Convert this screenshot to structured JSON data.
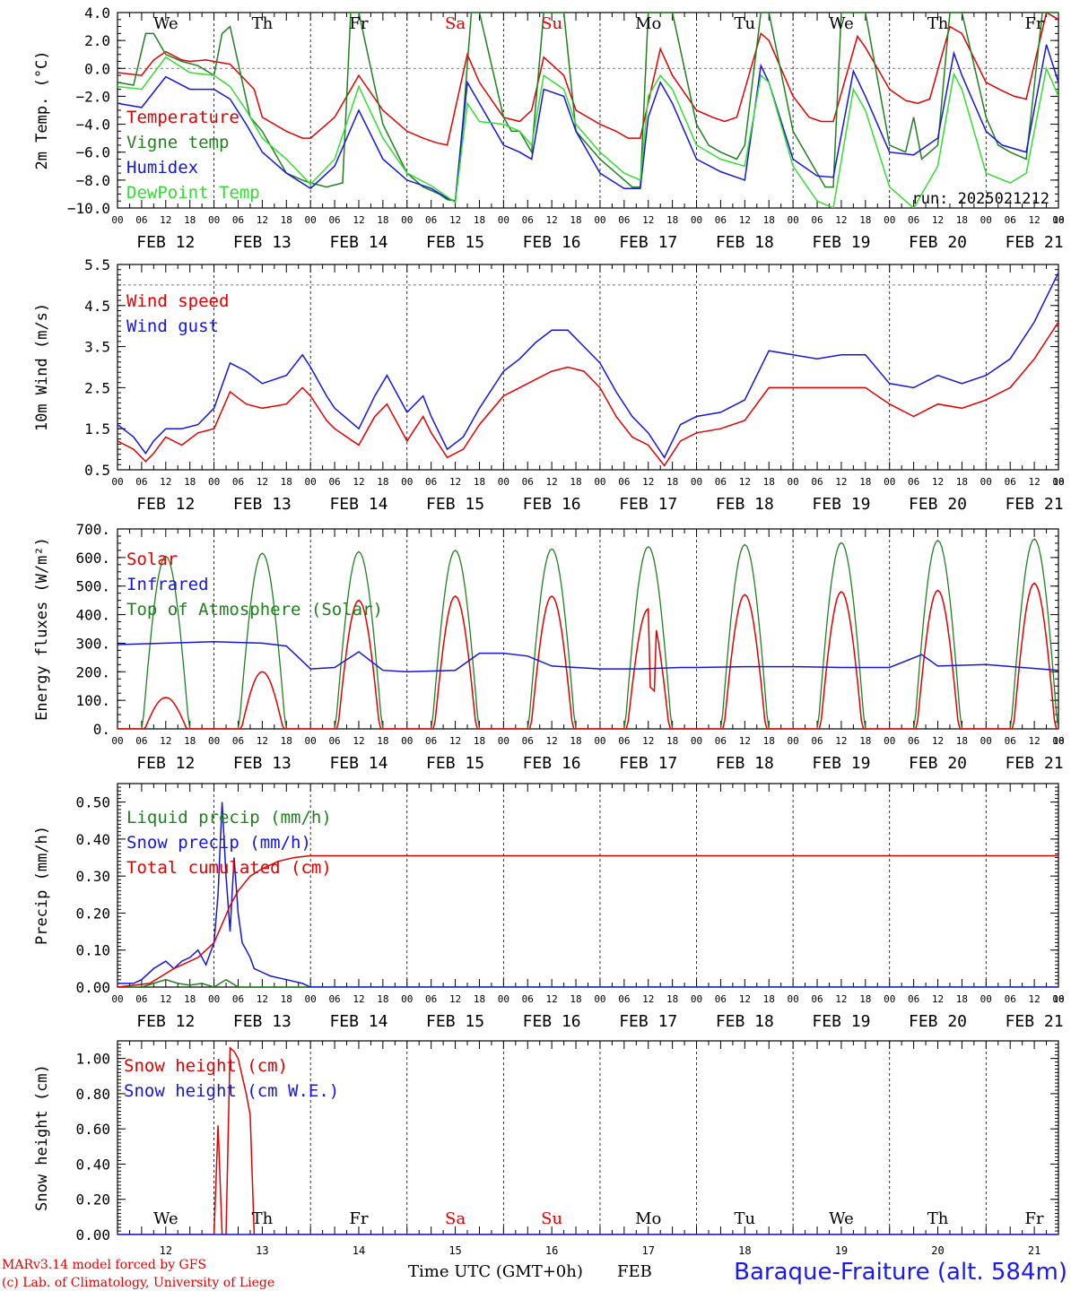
{
  "colors": {
    "red": "#e00000",
    "green": "#208020",
    "blue": "#1515dd",
    "lightgreen": "#33dd33",
    "weekend": "#e00000",
    "station": "#1a1aee"
  },
  "x_axis": {
    "hour_labels": [
      "00",
      "06",
      "12",
      "18"
    ],
    "final_hour_label": "00",
    "dates": [
      "FEB 12",
      "FEB 13",
      "FEB 14",
      "FEB 15",
      "FEB 16",
      "FEB 17",
      "FEB 18",
      "FEB 19",
      "FEB 20",
      "FEB 21"
    ],
    "weekdays": [
      "We",
      "Th",
      "Fr",
      "Sa",
      "Su",
      "Mo",
      "Tu",
      "We",
      "Th",
      "Fr"
    ],
    "weekend_days": [
      "Sa",
      "Su"
    ],
    "day_numbers": [
      "12",
      "13",
      "14",
      "15",
      "16",
      "17",
      "18",
      "19",
      "20",
      "21"
    ],
    "title": "Time UTC (GMT+0h)",
    "month": "FEB"
  },
  "footer": {
    "credit_line1": "MARv3.14 model forced by GFS",
    "credit_line2": "(c) Lab. of Climatology, University of Liege",
    "station": "Baraque-Fraiture (alt. 584m)"
  },
  "chart_data": [
    {
      "type": "line",
      "ylabel": "2m Temp. (°C)",
      "ylim": [
        -10.0,
        4.0
      ],
      "yticks": [
        "4.0",
        "2.0",
        "0.0",
        "−2.0",
        "−4.0",
        "−6.0",
        "−8.0",
        "−10.0"
      ],
      "run_label": "run: 2025021212",
      "x_unit": "hours since FEB 12 00 UTC",
      "series": [
        {
          "name": "Temperature",
          "color": "red",
          "x": [
            0,
            6,
            9,
            12,
            16,
            18,
            22,
            28,
            34,
            36,
            42,
            46,
            48,
            54,
            60,
            66,
            72,
            76,
            79,
            82,
            87,
            90,
            96,
            100,
            103,
            106,
            111,
            114,
            120,
            124,
            127,
            130,
            135,
            138,
            144,
            148,
            151,
            154,
            160,
            162,
            168,
            172,
            175,
            178,
            184,
            186,
            192,
            196,
            199,
            202,
            207,
            210,
            216,
            220,
            223,
            226,
            231,
            234
          ],
          "values": [
            -0.3,
            -0.5,
            0.6,
            1.2,
            0.6,
            0.5,
            0.6,
            0.3,
            -1.5,
            -3.5,
            -4.5,
            -5.0,
            -5.0,
            -3.5,
            -0.5,
            -3.0,
            -4.5,
            -5.0,
            -5.3,
            -5.5,
            1.0,
            -1.0,
            -3.5,
            -3.8,
            -3.0,
            0.8,
            -0.5,
            -3.0,
            -4.0,
            -4.5,
            -5.0,
            -5.0,
            1.4,
            -0.5,
            -3.0,
            -3.5,
            -3.8,
            -3.5,
            2.5,
            2.0,
            -2.0,
            -3.5,
            -3.8,
            -3.8,
            2.3,
            1.5,
            -1.5,
            -2.3,
            -2.5,
            -2.2,
            3.0,
            2.5,
            -1.0,
            -1.6,
            -2.0,
            -2.2,
            4.0,
            3.5
          ]
        },
        {
          "name": "Vigne temp",
          "color": "green",
          "x": [
            0,
            4,
            7,
            9,
            12,
            16,
            20,
            24,
            26,
            28,
            33,
            36,
            42,
            46,
            48,
            52,
            56,
            58,
            60,
            66,
            72,
            76,
            80,
            82,
            84,
            86,
            88,
            90,
            96,
            98,
            100,
            103,
            106,
            111,
            114,
            120,
            124,
            128,
            130,
            132,
            135,
            138,
            144,
            147,
            150,
            154,
            156,
            160,
            162,
            168,
            172,
            176,
            178,
            180,
            183,
            186,
            192,
            196,
            198,
            200,
            204,
            207,
            210,
            216,
            219,
            222,
            226,
            230,
            234
          ],
          "values": [
            -1.0,
            -1.2,
            2.5,
            2.5,
            1.0,
            0.5,
            0.2,
            -0.5,
            2.5,
            3.0,
            -3.5,
            -4.5,
            -7.5,
            -8.0,
            -8.2,
            -8.5,
            -8.2,
            4.0,
            4.0,
            -4.0,
            -7.5,
            -8.5,
            -9.0,
            -9.4,
            -9.5,
            -3.5,
            4.0,
            4.0,
            -3.5,
            -4.5,
            -4.5,
            -6.0,
            4.0,
            4.0,
            -4.5,
            -6.5,
            -7.5,
            -8.5,
            -8.5,
            4.0,
            4.0,
            4.0,
            -4.0,
            -5.5,
            -6.0,
            -6.5,
            -5.5,
            4.0,
            4.0,
            -4.5,
            -6.5,
            -8.5,
            -8.5,
            4.0,
            4.0,
            4.0,
            -5.5,
            -6.0,
            -3.5,
            -6.5,
            -5.5,
            4.0,
            4.0,
            -3.5,
            -5.5,
            -6.0,
            -6.5,
            4.0,
            4.0
          ]
        },
        {
          "name": "Humidex",
          "color": "blue",
          "x": [
            0,
            6,
            12,
            18,
            24,
            28,
            32,
            36,
            42,
            48,
            54,
            60,
            66,
            72,
            78,
            82,
            84,
            87,
            90,
            96,
            100,
            103,
            106,
            111,
            114,
            120,
            126,
            130,
            132,
            135,
            138,
            144,
            150,
            156,
            160,
            162,
            168,
            174,
            178,
            183,
            186,
            192,
            198,
            204,
            208,
            210,
            216,
            220,
            226,
            231,
            234
          ],
          "values": [
            -2.5,
            -2.8,
            -0.6,
            -1.5,
            -1.5,
            -2.2,
            -4.0,
            -6.0,
            -7.5,
            -8.6,
            -7.0,
            -3.0,
            -6.5,
            -8.0,
            -8.6,
            -9.3,
            -9.5,
            -1.0,
            -2.5,
            -5.5,
            -6.0,
            -6.5,
            -1.5,
            -2.0,
            -4.5,
            -7.5,
            -8.6,
            -8.6,
            -3.5,
            -1.0,
            -2.5,
            -6.5,
            -7.4,
            -8.0,
            0.2,
            -1.0,
            -6.5,
            -7.7,
            -7.8,
            -0.2,
            -2.0,
            -6.0,
            -6.2,
            -5.0,
            1.1,
            -0.5,
            -4.5,
            -5.5,
            -6.0,
            1.7,
            -1.0
          ]
        },
        {
          "name": "DewPoint Temp",
          "color": "lightgreen",
          "x": [
            0,
            6,
            12,
            18,
            24,
            28,
            32,
            36,
            42,
            48,
            54,
            60,
            66,
            72,
            78,
            82,
            84,
            87,
            90,
            96,
            100,
            103,
            106,
            111,
            114,
            120,
            126,
            130,
            132,
            135,
            138,
            144,
            150,
            156,
            160,
            162,
            168,
            174,
            178,
            183,
            186,
            192,
            198,
            204,
            208,
            210,
            216,
            222,
            226,
            231,
            234
          ],
          "values": [
            -1.3,
            -1.5,
            0.8,
            -0.3,
            -0.5,
            -1.3,
            -3.0,
            -5.0,
            -6.5,
            -8.3,
            -6.5,
            -1.3,
            -5.0,
            -7.5,
            -8.4,
            -9.2,
            -9.6,
            -2.5,
            -3.8,
            -4.0,
            -4.5,
            -5.5,
            -0.5,
            -1.5,
            -4.0,
            -6.0,
            -7.5,
            -8.0,
            -2.0,
            -0.5,
            -1.5,
            -5.5,
            -6.5,
            -7.0,
            -0.5,
            -1.0,
            -7.0,
            -9.5,
            -10.0,
            -1.5,
            -3.0,
            -8.5,
            -10.0,
            -7.0,
            -0.4,
            -1.5,
            -7.5,
            -8.2,
            -7.5,
            0.0,
            -2.0
          ]
        }
      ]
    },
    {
      "type": "line",
      "ylabel": "10m Wind (m/s)",
      "ylim": [
        0.5,
        5.5
      ],
      "yticks": [
        "5.5",
        "4.5",
        "3.5",
        "2.5",
        "1.5",
        "0.5"
      ],
      "x_unit": "hours since FEB 12 00 UTC",
      "series": [
        {
          "name": "Wind speed",
          "color": "red",
          "x": [
            0,
            4,
            7,
            9,
            12,
            16,
            20,
            24,
            28,
            32,
            36,
            42,
            46,
            48,
            52,
            54,
            60,
            64,
            67,
            72,
            76,
            78,
            82,
            86,
            90,
            96,
            100,
            104,
            108,
            112,
            116,
            120,
            124,
            128,
            132,
            136,
            140,
            144,
            150,
            156,
            162,
            168,
            174,
            180,
            186,
            192,
            198,
            204,
            210,
            216,
            222,
            228,
            234
          ],
          "values": [
            1.2,
            1.0,
            0.7,
            0.9,
            1.3,
            1.1,
            1.4,
            1.5,
            2.4,
            2.1,
            2.0,
            2.1,
            2.5,
            2.3,
            1.7,
            1.5,
            1.1,
            1.8,
            2.1,
            1.2,
            1.8,
            1.4,
            0.8,
            1.0,
            1.6,
            2.3,
            2.5,
            2.7,
            2.9,
            3.0,
            2.9,
            2.5,
            1.8,
            1.3,
            1.1,
            0.6,
            1.2,
            1.4,
            1.5,
            1.7,
            2.5,
            2.5,
            2.5,
            2.5,
            2.5,
            2.1,
            1.8,
            2.1,
            2.0,
            2.2,
            2.5,
            3.2,
            4.1
          ]
        },
        {
          "name": "Wind gust",
          "color": "blue",
          "x": [
            0,
            4,
            7,
            9,
            12,
            16,
            20,
            24,
            28,
            32,
            36,
            42,
            46,
            48,
            52,
            54,
            60,
            64,
            67,
            72,
            76,
            78,
            82,
            86,
            90,
            96,
            100,
            104,
            108,
            112,
            116,
            120,
            124,
            128,
            132,
            136,
            140,
            144,
            150,
            156,
            162,
            168,
            174,
            180,
            186,
            192,
            198,
            204,
            210,
            216,
            222,
            228,
            234
          ],
          "values": [
            1.6,
            1.3,
            0.9,
            1.2,
            1.5,
            1.5,
            1.6,
            2.0,
            3.1,
            2.9,
            2.6,
            2.8,
            3.3,
            3.0,
            2.3,
            2.0,
            1.5,
            2.3,
            2.8,
            1.9,
            2.3,
            1.8,
            1.0,
            1.3,
            2.0,
            2.9,
            3.2,
            3.6,
            3.9,
            3.9,
            3.5,
            3.1,
            2.4,
            1.8,
            1.4,
            0.8,
            1.6,
            1.8,
            1.9,
            2.2,
            3.4,
            3.3,
            3.2,
            3.3,
            3.3,
            2.6,
            2.5,
            2.8,
            2.6,
            2.8,
            3.2,
            4.1,
            5.3
          ]
        }
      ]
    },
    {
      "type": "line",
      "ylabel": "Energy fluxes (W/m²)",
      "ylim": [
        0,
        700
      ],
      "yticks": [
        "700.",
        "600.",
        "500.",
        "400.",
        "300.",
        "200.",
        "100.",
        "0."
      ],
      "x_unit": "hours since FEB 12 00 UTC",
      "daily_solar_peak": [
        110,
        200,
        450,
        465,
        465,
        420,
        470,
        480,
        485,
        510
      ],
      "daily_toa_peak": [
        605,
        615,
        620,
        625,
        630,
        638,
        645,
        652,
        660,
        665
      ],
      "series": [
        {
          "name": "Solar",
          "color": "red"
        },
        {
          "name": "Infrared",
          "color": "blue",
          "x": [
            0,
            12,
            24,
            36,
            42,
            48,
            54,
            60,
            66,
            72,
            84,
            90,
            96,
            102,
            108,
            114,
            120,
            130,
            140,
            144,
            156,
            168,
            180,
            192,
            200,
            204,
            216,
            234
          ],
          "values": [
            295,
            300,
            305,
            300,
            290,
            210,
            215,
            270,
            205,
            200,
            205,
            265,
            265,
            255,
            220,
            215,
            210,
            210,
            215,
            215,
            218,
            218,
            215,
            215,
            260,
            220,
            225,
            205
          ]
        },
        {
          "name": "Top of Atmosphere (Solar)",
          "color": "green"
        }
      ]
    },
    {
      "type": "line",
      "ylabel": "Precip (mm/h)",
      "ylim": [
        0,
        0.55
      ],
      "yticks": [
        "0.50",
        "0.40",
        "0.30",
        "0.20",
        "0.10",
        "0.00"
      ],
      "x_unit": "hours since FEB 12 00 UTC",
      "series": [
        {
          "name": "Liquid precip (mm/h)",
          "color": "green",
          "x": [
            0,
            6,
            9,
            12,
            15,
            18,
            21,
            24,
            27,
            30,
            36,
            42,
            234
          ],
          "values": [
            0.0,
            0.0,
            0.01,
            0.02,
            0.01,
            0.005,
            0.01,
            0.0,
            0.02,
            0.0,
            0.0,
            0.0,
            0.0
          ]
        },
        {
          "name": "Snow precip (mm/h)",
          "color": "blue",
          "x": [
            0,
            4,
            6,
            9,
            12,
            14,
            16,
            18,
            20,
            22,
            24,
            25,
            26,
            27,
            28,
            29,
            30,
            31,
            32,
            33,
            34,
            36,
            38,
            40,
            42,
            44,
            46,
            48,
            234
          ],
          "values": [
            0.01,
            0.01,
            0.02,
            0.05,
            0.07,
            0.05,
            0.07,
            0.08,
            0.1,
            0.06,
            0.12,
            0.25,
            0.5,
            0.3,
            0.15,
            0.35,
            0.2,
            0.12,
            0.1,
            0.08,
            0.05,
            0.04,
            0.03,
            0.025,
            0.02,
            0.015,
            0.01,
            0.0,
            0.0
          ]
        },
        {
          "name": "Total cumulated (cm)",
          "color": "red",
          "x": [
            0,
            8,
            14,
            20,
            24,
            26,
            28,
            30,
            33,
            36,
            40,
            44,
            48,
            234
          ],
          "values": [
            0.0,
            0.01,
            0.05,
            0.08,
            0.12,
            0.17,
            0.22,
            0.26,
            0.3,
            0.32,
            0.34,
            0.35,
            0.355,
            0.355
          ]
        }
      ]
    },
    {
      "type": "line",
      "ylabel": "Snow height (cm)",
      "ylim": [
        0,
        1.1
      ],
      "yticks": [
        "1.00",
        "0.80",
        "0.60",
        "0.40",
        "0.20",
        "0.00"
      ],
      "x_unit": "hours since FEB 12 00 UTC",
      "series": [
        {
          "name": "Snow height (cm)",
          "color": "red",
          "x": [
            0,
            24,
            25,
            26,
            27,
            28,
            29,
            30,
            31,
            32,
            33,
            34,
            35,
            36,
            234
          ],
          "values": [
            0,
            0,
            0.62,
            0,
            0,
            1.06,
            1.04,
            1.0,
            0.9,
            0.8,
            0.68,
            0,
            0,
            0,
            0
          ]
        },
        {
          "name": "Snow height (cm W.E.)",
          "color": "blue",
          "x": [
            0,
            234
          ],
          "values": [
            0,
            0
          ]
        }
      ]
    }
  ]
}
